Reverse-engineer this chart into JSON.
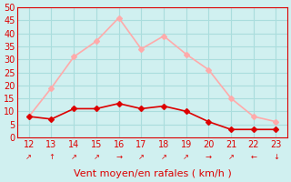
{
  "x": [
    12,
    13,
    14,
    15,
    16,
    17,
    18,
    19,
    20,
    21,
    22,
    23
  ],
  "y_mean": [
    8,
    7,
    11,
    11,
    13,
    11,
    12,
    10,
    6,
    3,
    3,
    3
  ],
  "y_gusts": [
    8,
    19,
    31,
    37,
    46,
    34,
    39,
    32,
    26,
    15,
    8,
    6
  ],
  "color_mean": "#dd0000",
  "color_gusts": "#ffaaaa",
  "bg_color": "#d0f0f0",
  "grid_color": "#aadddd",
  "xlabel": "Vent moyen/en rafales ( km/h )",
  "xlabel_color": "#dd0000",
  "xlabel_fontsize": 8,
  "tick_color": "#dd0000",
  "ylim": [
    0,
    50
  ],
  "xlim": [
    11.5,
    23.5
  ],
  "yticks": [
    0,
    5,
    10,
    15,
    20,
    25,
    30,
    35,
    40,
    45,
    50
  ],
  "xticks": [
    12,
    13,
    14,
    15,
    16,
    17,
    18,
    19,
    20,
    21,
    22,
    23
  ],
  "wind_arrows": [
    "↗",
    "↑",
    "↗",
    "↗",
    "→",
    "↗",
    "↗",
    "↗",
    "→",
    "↗",
    "←",
    "↓"
  ]
}
